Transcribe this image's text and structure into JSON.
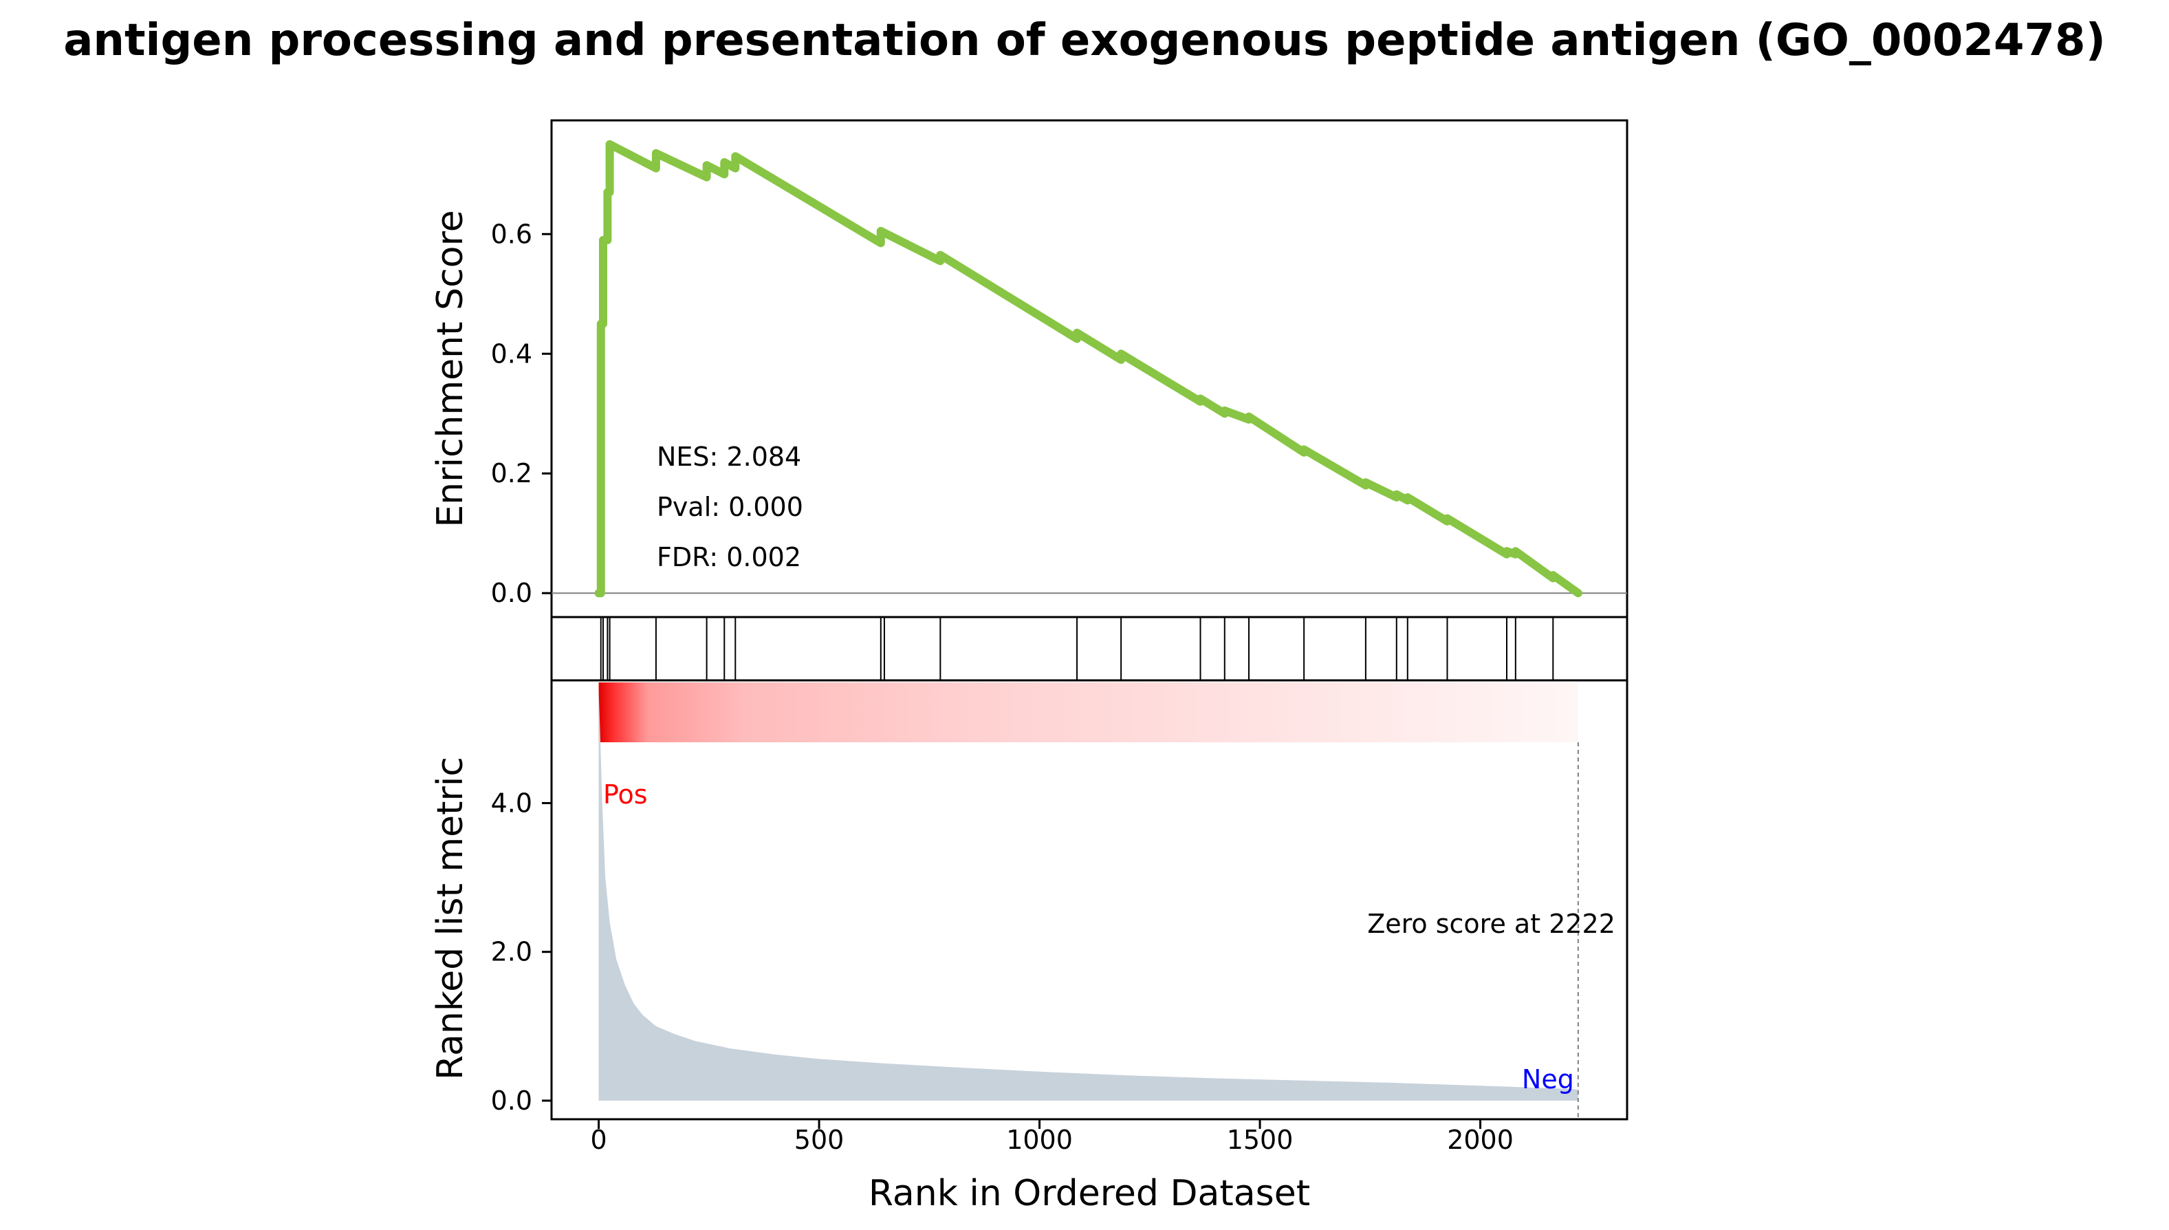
{
  "title": "antigen processing and presentation of exogenous peptide antigen (GO_0002478)",
  "chart_data": [
    {
      "type": "line",
      "panel": "enrichment",
      "ylabel": "Enrichment Score",
      "ylim": [
        -0.04,
        0.79
      ],
      "xlim": [
        -107,
        2333
      ],
      "yticks": [
        0.0,
        0.2,
        0.4,
        0.6
      ],
      "ytick_labels": [
        "0.0",
        "0.2",
        "0.4",
        "0.6"
      ],
      "line_color": "#88c544",
      "zero_line": true,
      "series": [
        {
          "x": [
            0,
            5,
            5,
            10,
            10,
            20,
            20,
            25,
            25,
            130,
            130,
            245,
            245,
            285,
            285,
            310,
            310,
            640,
            640,
            775,
            775,
            1085,
            1085,
            1185,
            1185,
            1365,
            1365,
            1420,
            1420,
            1475,
            1475,
            1600,
            1600,
            1740,
            1740,
            1810,
            1810,
            1835,
            1835,
            1925,
            1925,
            2060,
            2060,
            2080,
            2080,
            2165,
            2165,
            2222
          ],
          "y": [
            0.0,
            0.0,
            0.45,
            0.45,
            0.59,
            0.59,
            0.67,
            0.67,
            0.75,
            0.71,
            0.735,
            0.695,
            0.715,
            0.7,
            0.72,
            0.71,
            0.73,
            0.585,
            0.605,
            0.555,
            0.565,
            0.425,
            0.435,
            0.39,
            0.4,
            0.32,
            0.325,
            0.3,
            0.305,
            0.29,
            0.295,
            0.235,
            0.24,
            0.18,
            0.185,
            0.16,
            0.165,
            0.155,
            0.16,
            0.12,
            0.125,
            0.065,
            0.07,
            0.065,
            0.07,
            0.025,
            0.03,
            0.0
          ]
        }
      ]
    },
    {
      "type": "hits",
      "panel": "gene-hits",
      "x": [
        5,
        10,
        20,
        25,
        130,
        245,
        285,
        310,
        640,
        648,
        775,
        1085,
        1185,
        1365,
        1420,
        1475,
        1600,
        1740,
        1810,
        1835,
        1925,
        2060,
        2080,
        2165
      ]
    },
    {
      "type": "heatmap",
      "panel": "rank-gradient",
      "colors": [
        "#ff0000",
        "#ffffff"
      ],
      "x_range": [
        0,
        2222
      ]
    },
    {
      "type": "area",
      "panel": "ranked-metric",
      "ylabel": "Ranked list metric",
      "xlabel": "Rank in Ordered Dataset",
      "ylim": [
        -0.25,
        5.65
      ],
      "xlim": [
        -107,
        2333
      ],
      "yticks": [
        0.0,
        2.0,
        4.0
      ],
      "ytick_labels": [
        "0.0",
        "2.0",
        "4.0"
      ],
      "xticks": [
        0,
        500,
        1000,
        1500,
        2000
      ],
      "xtick_labels": [
        "0",
        "500",
        "1000",
        "1500",
        "2000"
      ],
      "fill_color": "#c8d2db",
      "series": [
        {
          "x": [
            0,
            3,
            8,
            15,
            25,
            40,
            60,
            80,
            100,
            130,
            170,
            220,
            300,
            400,
            500,
            650,
            800,
            1000,
            1200,
            1400,
            1600,
            1800,
            2000,
            2100,
            2200,
            2222
          ],
          "y": [
            5.5,
            5.0,
            4.0,
            3.0,
            2.4,
            1.9,
            1.55,
            1.3,
            1.15,
            1.0,
            0.9,
            0.8,
            0.7,
            0.62,
            0.56,
            0.5,
            0.45,
            0.39,
            0.34,
            0.3,
            0.27,
            0.24,
            0.2,
            0.18,
            0.16,
            0.15
          ]
        }
      ],
      "annotations": {
        "pos_label": "Pos",
        "pos_color": "#ff0000",
        "neg_label": "Neg",
        "neg_color": "#0000ff",
        "zero_score_text": "Zero score at 2222",
        "zero_score_x": 2222
      }
    }
  ],
  "stats": {
    "nes": "NES: 2.084",
    "pval": "Pval: 0.000",
    "fdr": "FDR: 0.002"
  }
}
